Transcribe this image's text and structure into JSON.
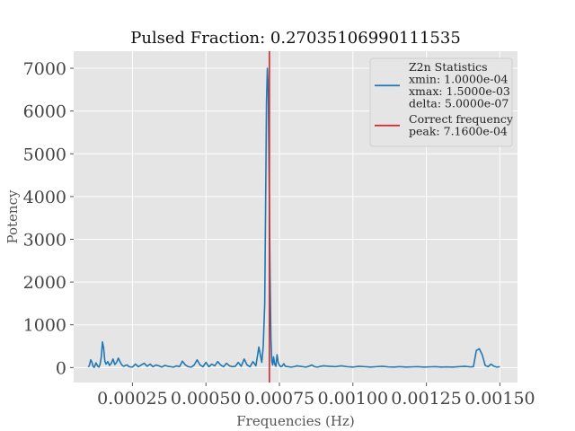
{
  "chart_data": {
    "type": "line",
    "title": "Pulsed Fraction: 0.27035106990111535",
    "xlabel": "Frequencies (Hz)",
    "ylabel": "Potency",
    "xlim": [
      5e-05,
      0.00156
    ],
    "ylim": [
      -350,
      7400
    ],
    "xticks": [
      0.00025,
      0.0005,
      0.00075,
      0.001,
      0.00125,
      0.0015
    ],
    "xtick_labels": [
      "0.00025",
      "0.00050",
      "0.00075",
      "0.00100",
      "0.00125",
      "0.00150"
    ],
    "yticks": [
      0,
      1000,
      2000,
      3000,
      4000,
      5000,
      6000,
      7000
    ],
    "ytick_labels": [
      "0",
      "1000",
      "2000",
      "3000",
      "4000",
      "5000",
      "6000",
      "7000"
    ],
    "grid": true,
    "legend_position": "top-right",
    "series": [
      {
        "name": "Z2n Statistics",
        "legend_lines": [
          "Z2n Statistics",
          "xmin: 1.0000e-04",
          "xmax: 1.5000e-03",
          "delta: 5.0000e-07"
        ],
        "color": "#1f77b4",
        "x": [
          0.0001,
          0.000104,
          0.000108,
          0.000112,
          0.000116,
          0.00012,
          0.000126,
          0.000132,
          0.000136,
          0.00014,
          0.000144,
          0.000148,
          0.000152,
          0.000156,
          0.00016,
          0.000166,
          0.000172,
          0.000178,
          0.000184,
          0.00019,
          0.000196,
          0.000202,
          0.000208,
          0.000214,
          0.00022,
          0.000226,
          0.000232,
          0.000238,
          0.000244,
          0.00025,
          0.00026,
          0.00027,
          0.00028,
          0.00029,
          0.0003,
          0.00031,
          0.00032,
          0.00033,
          0.00034,
          0.00035,
          0.00036,
          0.00037,
          0.00038,
          0.00039,
          0.0004,
          0.00041,
          0.00042,
          0.00043,
          0.00044,
          0.00045,
          0.00046,
          0.00047,
          0.00048,
          0.00049,
          0.0005,
          0.00051,
          0.00052,
          0.00053,
          0.00054,
          0.00055,
          0.00056,
          0.00057,
          0.00058,
          0.00059,
          0.0006,
          0.00061,
          0.00062,
          0.00063,
          0.00064,
          0.00065,
          0.00066,
          0.00067,
          0.00068,
          0.000685,
          0.00069,
          0.000695,
          0.0007,
          0.000703,
          0.000706,
          0.000709,
          0.000712,
          0.000715,
          0.000718,
          0.000721,
          0.000724,
          0.000727,
          0.00073,
          0.000734,
          0.000738,
          0.000742,
          0.000746,
          0.00075,
          0.000755,
          0.00076,
          0.000765,
          0.00077,
          0.00078,
          0.00079,
          0.0008,
          0.00081,
          0.00082,
          0.00083,
          0.00084,
          0.00085,
          0.00086,
          0.00087,
          0.00088,
          0.00089,
          0.0009,
          0.00092,
          0.00094,
          0.00096,
          0.00098,
          0.001,
          0.00102,
          0.00104,
          0.00106,
          0.00108,
          0.0011,
          0.00112,
          0.00114,
          0.00116,
          0.00118,
          0.0012,
          0.00122,
          0.00124,
          0.00126,
          0.00128,
          0.0013,
          0.00132,
          0.00134,
          0.00136,
          0.00138,
          0.0014,
          0.00141,
          0.00142,
          0.00143,
          0.00144,
          0.00145,
          0.00146,
          0.00147,
          0.00148,
          0.00149,
          0.0015
        ],
        "y": [
          10,
          60,
          180,
          130,
          30,
          5,
          110,
          30,
          10,
          80,
          250,
          600,
          450,
          150,
          80,
          140,
          50,
          100,
          200,
          70,
          120,
          220,
          130,
          60,
          30,
          50,
          60,
          20,
          15,
          10,
          80,
          20,
          60,
          100,
          30,
          80,
          20,
          60,
          40,
          10,
          50,
          30,
          20,
          10,
          40,
          20,
          150,
          60,
          20,
          10,
          60,
          180,
          60,
          20,
          120,
          20,
          80,
          40,
          140,
          60,
          20,
          100,
          40,
          20,
          30,
          120,
          30,
          200,
          60,
          20,
          140,
          40,
          480,
          300,
          120,
          500,
          1500,
          3800,
          6200,
          7000,
          6500,
          4500,
          2200,
          700,
          150,
          60,
          250,
          80,
          30,
          300,
          120,
          50,
          20,
          40,
          90,
          30,
          20,
          10,
          20,
          40,
          30,
          20,
          10,
          30,
          60,
          20,
          10,
          30,
          40,
          30,
          20,
          40,
          20,
          10,
          30,
          20,
          10,
          20,
          30,
          15,
          10,
          20,
          10,
          15,
          20,
          10,
          15,
          20,
          10,
          15,
          10,
          20,
          30,
          15,
          20,
          400,
          440,
          300,
          50,
          20,
          80,
          30,
          10,
          20
        ]
      },
      {
        "name": "Correct frequency",
        "legend_lines": [
          "Correct frequency",
          "peak: 7.1600e-04"
        ],
        "color": "#d62728",
        "type": "vline",
        "x": 0.000716
      }
    ]
  }
}
